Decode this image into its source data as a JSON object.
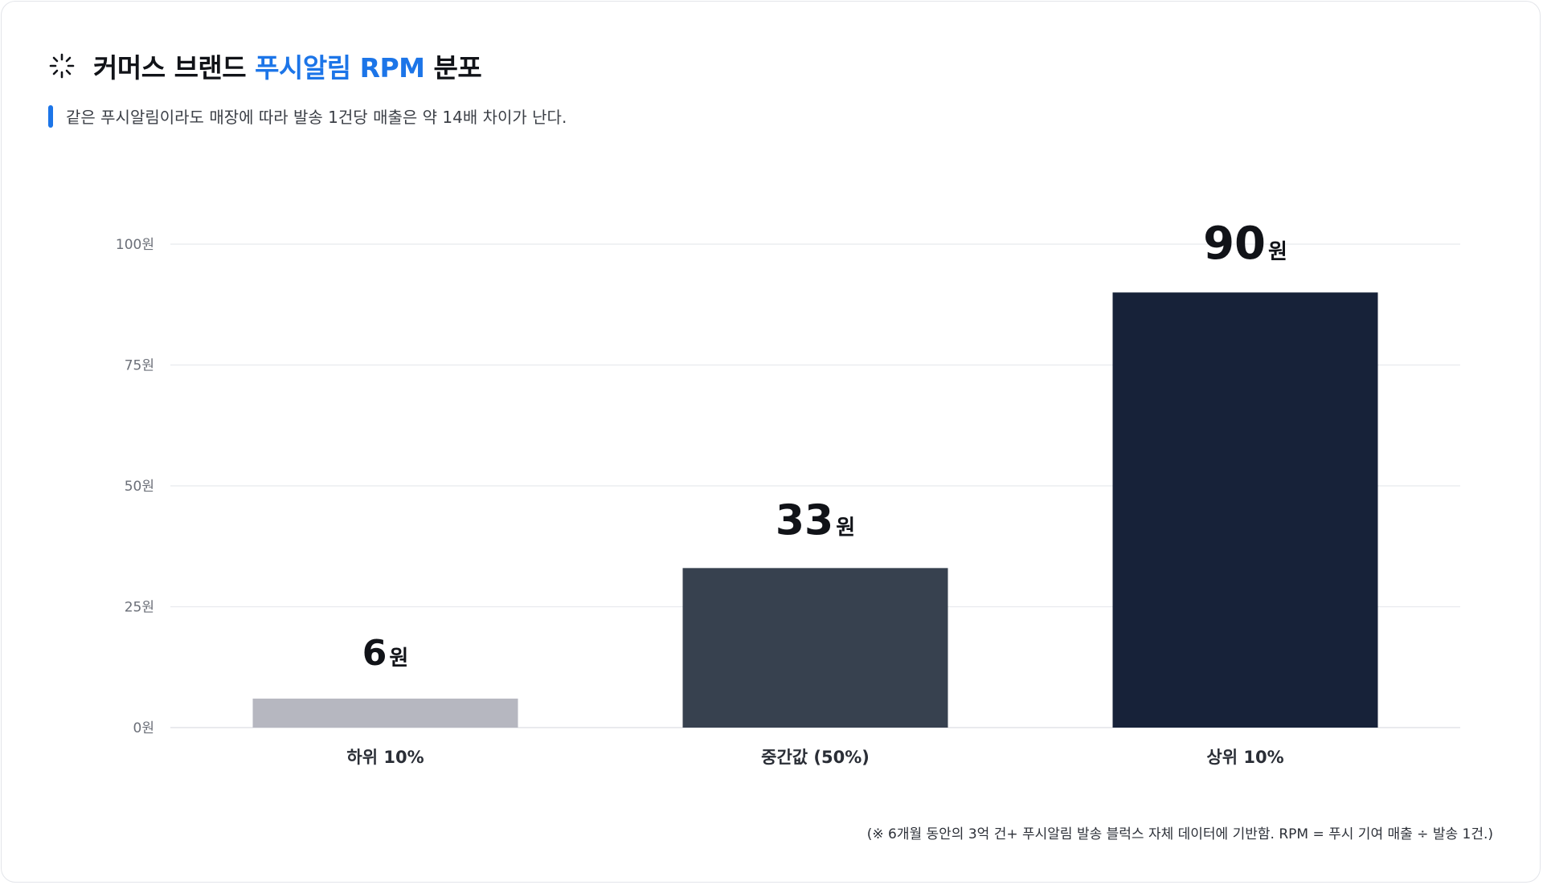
{
  "header": {
    "title_pre": "커머스 브랜드 ",
    "title_accent": "푸시알림 RPM",
    "title_post": " 분포",
    "subtitle": "같은 푸시알림이라도 매장에 따라 발송 1건당 매출은 약 14배 차이가 난다.",
    "icon": "spark-icon"
  },
  "colors": {
    "accent": "#1c75e8",
    "bars": [
      "#b6b7c0",
      "#37414f",
      "#172239"
    ],
    "grid": "#e8eaee",
    "tick_text": "#6b6f78"
  },
  "chart_data": {
    "type": "bar",
    "categories": [
      "하위 10%",
      "중간값 (50%)",
      "상위 10%"
    ],
    "values": [
      6,
      33,
      90
    ],
    "value_unit": "원",
    "ylim": [
      0,
      100
    ],
    "yticks": [
      0,
      25,
      50,
      75,
      100
    ],
    "ytick_labels": [
      "0원",
      "25원",
      "50원",
      "75원",
      "100원"
    ],
    "grid": true,
    "title": "",
    "xlabel": "",
    "ylabel": ""
  },
  "footnote": "(※ 6개월 동안의 3억 건+ 푸시알림 발송 블럭스 자체 데이터에 기반함. RPM = 푸시 기여 매출 ÷ 발송 1건.)"
}
